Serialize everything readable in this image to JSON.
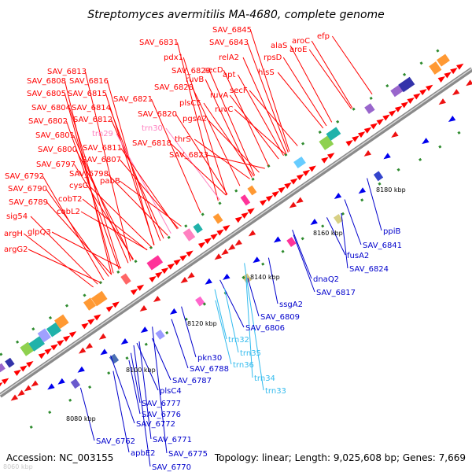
{
  "title": "Streptomyces avermitilis MA-4680, complete genome",
  "footer": {
    "accession": "Accession: NC_003155",
    "summary": "Topology: linear; Length: 9,025,608 bp; Genes: 7,669"
  },
  "corner_faint_label": "8060 kbp",
  "colors": {
    "forward_label": "#ff0000",
    "reverse_label": "#0000cc",
    "trna_forward": "#ff80c0",
    "trna_reverse": "#33bbee",
    "forward_feature": "#ff0000",
    "reverse_feature": "#0000ee",
    "backbone": "#999999"
  },
  "scale_labels": [
    "8080 kbp",
    "8100 kbp",
    "8120 kbp",
    "8140 kbp",
    "8160 kbp",
    "8180 kbp"
  ],
  "forward_labels": [
    {
      "text": "SAV_6845",
      "kind": "gene"
    },
    {
      "text": "alaS",
      "kind": "gene"
    },
    {
      "text": "aroC",
      "kind": "gene"
    },
    {
      "text": "efp",
      "kind": "gene"
    },
    {
      "text": "SAV_6831",
      "kind": "gene"
    },
    {
      "text": "SAV_6843",
      "kind": "gene"
    },
    {
      "text": "rpsD",
      "kind": "gene"
    },
    {
      "text": "aroE",
      "kind": "gene"
    },
    {
      "text": "pdx1",
      "kind": "gene"
    },
    {
      "text": "relA2",
      "kind": "gene"
    },
    {
      "text": "secD",
      "kind": "gene"
    },
    {
      "text": "SAV_6829",
      "kind": "gene"
    },
    {
      "text": "apt",
      "kind": "gene"
    },
    {
      "text": "hisS",
      "kind": "gene"
    },
    {
      "text": "SAV_6813",
      "kind": "gene"
    },
    {
      "text": "ruvB",
      "kind": "gene"
    },
    {
      "text": "secF",
      "kind": "gene"
    },
    {
      "text": "SAV_6808",
      "kind": "gene"
    },
    {
      "text": "SAV_6816",
      "kind": "gene"
    },
    {
      "text": "SAV_6828",
      "kind": "gene"
    },
    {
      "text": "ruvA",
      "kind": "gene"
    },
    {
      "text": "SAV_6805",
      "kind": "gene"
    },
    {
      "text": "SAV_6815",
      "kind": "gene"
    },
    {
      "text": "SAV_6821",
      "kind": "gene"
    },
    {
      "text": "plsC5",
      "kind": "gene"
    },
    {
      "text": "ruvC",
      "kind": "gene"
    },
    {
      "text": "SAV_6804",
      "kind": "gene"
    },
    {
      "text": "SAV_6814",
      "kind": "gene"
    },
    {
      "text": "SAV_6820",
      "kind": "gene"
    },
    {
      "text": "pgsA2",
      "kind": "gene"
    },
    {
      "text": "SAV_6802",
      "kind": "gene"
    },
    {
      "text": "SAV_6812",
      "kind": "gene"
    },
    {
      "text": "trn30",
      "kind": "trna"
    },
    {
      "text": "SAV_6801",
      "kind": "gene"
    },
    {
      "text": "trn29",
      "kind": "trna"
    },
    {
      "text": "thrS",
      "kind": "gene"
    },
    {
      "text": "SAV_6818",
      "kind": "gene"
    },
    {
      "text": "SAV_6800",
      "kind": "gene"
    },
    {
      "text": "SAV_6811",
      "kind": "gene"
    },
    {
      "text": "SAV_6797",
      "kind": "gene"
    },
    {
      "text": "SAV_6807",
      "kind": "gene"
    },
    {
      "text": "SAV_6823",
      "kind": "gene"
    },
    {
      "text": "SAV_6798",
      "kind": "gene"
    },
    {
      "text": "SAV_6792",
      "kind": "gene"
    },
    {
      "text": "pabB",
      "kind": "gene"
    },
    {
      "text": "SAV_6790",
      "kind": "gene"
    },
    {
      "text": "cysG",
      "kind": "gene"
    },
    {
      "text": "cobT2",
      "kind": "gene"
    },
    {
      "text": "SAV_6789",
      "kind": "gene"
    },
    {
      "text": "cobL2",
      "kind": "gene"
    },
    {
      "text": "sig54",
      "kind": "gene"
    },
    {
      "text": "argH",
      "kind": "gene"
    },
    {
      "text": "glpQ3",
      "kind": "gene"
    },
    {
      "text": "argG2",
      "kind": "gene"
    }
  ],
  "reverse_labels": [
    {
      "text": "ppiB",
      "kind": "gene"
    },
    {
      "text": "SAV_6841",
      "kind": "gene"
    },
    {
      "text": "fusA2",
      "kind": "gene"
    },
    {
      "text": "SAV_6824",
      "kind": "gene"
    },
    {
      "text": "dnaQ2",
      "kind": "gene"
    },
    {
      "text": "SAV_6817",
      "kind": "gene"
    },
    {
      "text": "ssgA2",
      "kind": "gene"
    },
    {
      "text": "SAV_6809",
      "kind": "gene"
    },
    {
      "text": "SAV_6806",
      "kind": "gene"
    },
    {
      "text": "trn32",
      "kind": "trna"
    },
    {
      "text": "trn35",
      "kind": "trna"
    },
    {
      "text": "trn36",
      "kind": "trna"
    },
    {
      "text": "pkn30",
      "kind": "gene"
    },
    {
      "text": "SAV_6788",
      "kind": "gene"
    },
    {
      "text": "SAV_6787",
      "kind": "gene"
    },
    {
      "text": "trn34",
      "kind": "trna"
    },
    {
      "text": "trn33",
      "kind": "trna"
    },
    {
      "text": "plsC4",
      "kind": "gene"
    },
    {
      "text": "SAV_6777",
      "kind": "gene"
    },
    {
      "text": "SAV_6776",
      "kind": "gene"
    },
    {
      "text": "SAV_6772",
      "kind": "gene"
    },
    {
      "text": "SAV_6771",
      "kind": "gene"
    },
    {
      "text": "SAV_6762",
      "kind": "gene"
    },
    {
      "text": "apbE2",
      "kind": "gene"
    },
    {
      "text": "SAV_6775",
      "kind": "gene"
    },
    {
      "text": "SAV_6770",
      "kind": "gene"
    }
  ]
}
